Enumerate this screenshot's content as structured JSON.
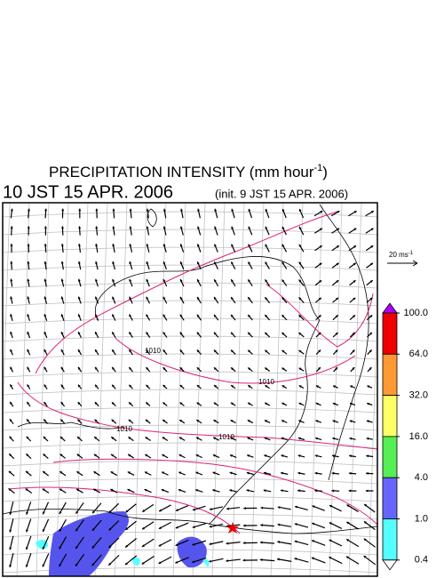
{
  "title": {
    "main": "PRECIPITATION INTENSITY (mm hour",
    "exponent": "-1",
    "close": ")"
  },
  "subtitle": {
    "time": "10 JST 15 APR. 2006",
    "init": "(init. 9 JST 15 APR. 2006)"
  },
  "wind_legend": {
    "text": "20 ms",
    "exponent": "-1"
  },
  "isobar_labels": [
    "1010",
    "1010",
    "1010",
    "1010"
  ],
  "colorbar": {
    "levels": [
      {
        "value": 100,
        "label": "100.0"
      },
      {
        "value": 64,
        "label": "64.0"
      },
      {
        "value": 32,
        "label": "32.0"
      },
      {
        "value": 16,
        "label": "16.0"
      },
      {
        "value": 4,
        "label": "4.0"
      },
      {
        "value": 1,
        "label": "1.0"
      },
      {
        "value": 0.4,
        "label": "0.4"
      }
    ],
    "colors": [
      "#ee0000",
      "#ff9933",
      "#ffff66",
      "#55ee55",
      "#6666ff",
      "#55ffff"
    ],
    "over_color": "#aa00ff",
    "under_color": "#ffffff"
  }
}
